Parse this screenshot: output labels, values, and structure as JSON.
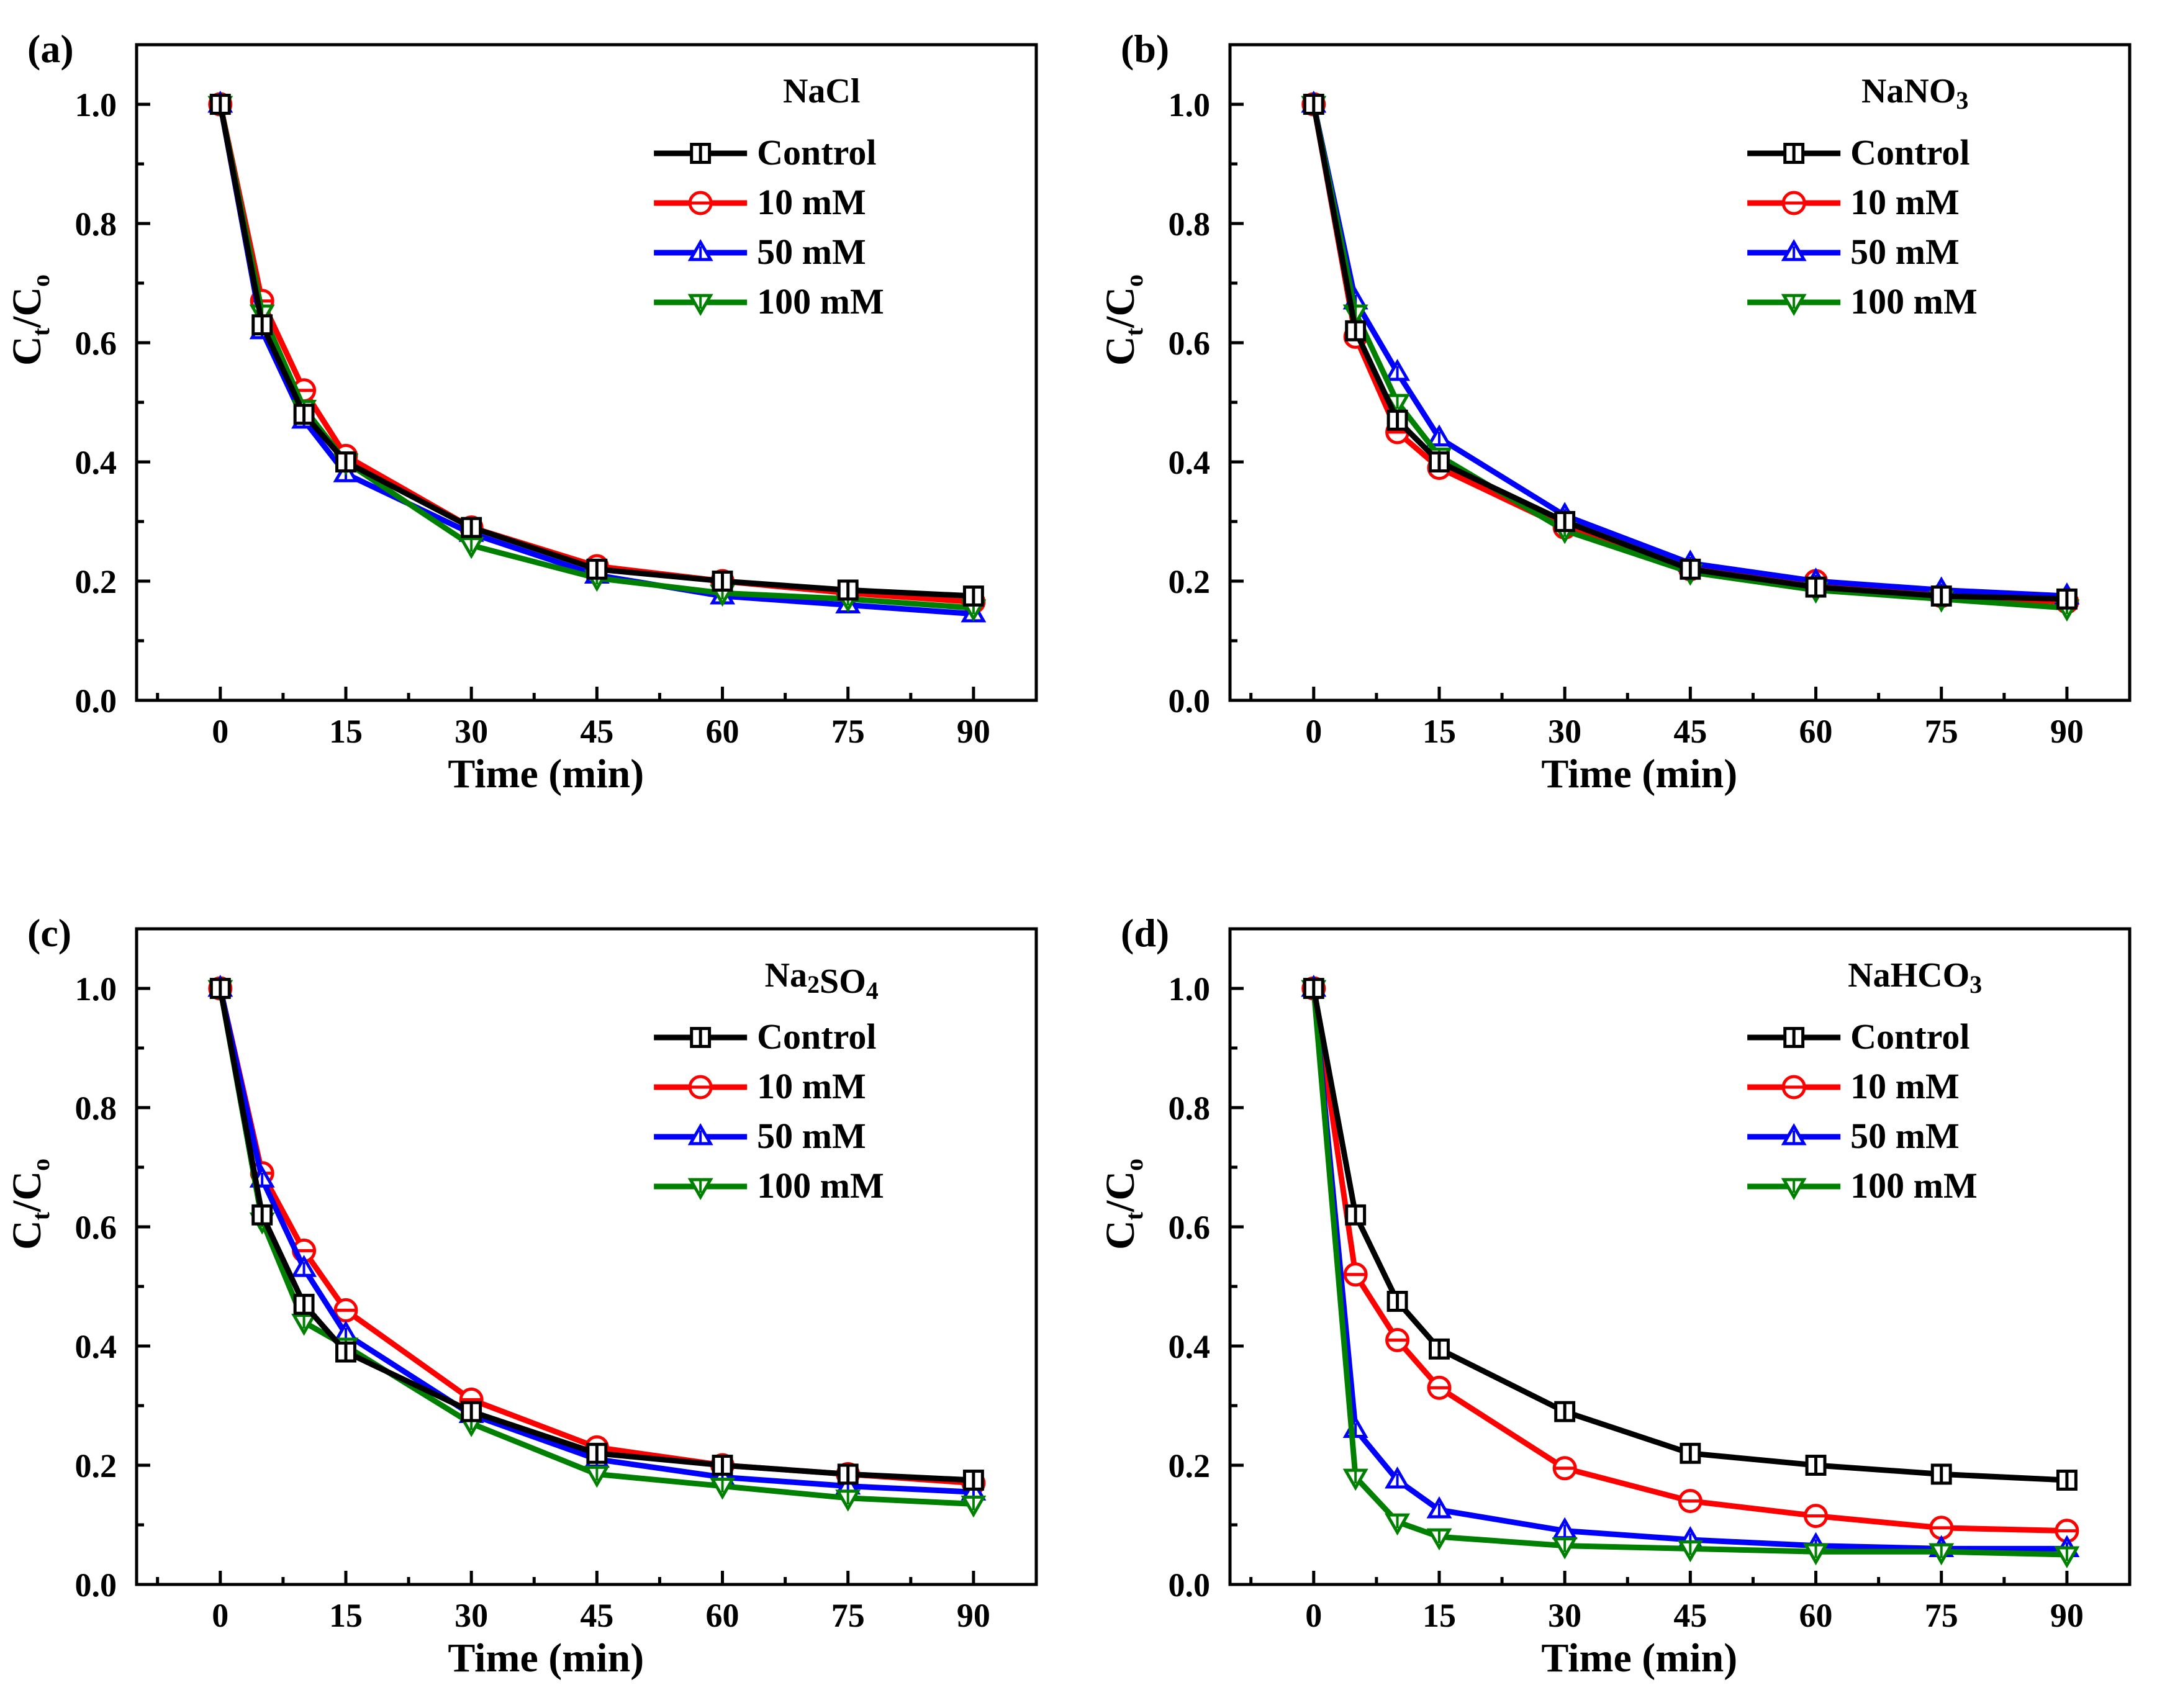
{
  "figure": {
    "background": "#ffffff",
    "series_styles": [
      {
        "key": "control",
        "color": "#000000",
        "marker": "square"
      },
      {
        "key": "10mM",
        "color": "#ff0000",
        "marker": "circle"
      },
      {
        "key": "50mM",
        "color": "#0000ff",
        "marker": "triangle-up"
      },
      {
        "key": "100mM",
        "color": "#008000",
        "marker": "triangle-down"
      }
    ]
  },
  "chart_data": [
    {
      "type": "line",
      "panel_label": "(a)",
      "legend_title": "NaCl",
      "legend_title_parts": [
        {
          "t": "NaCl",
          "sub": false
        }
      ],
      "legend_position": "top-right",
      "x": [
        0,
        5,
        10,
        15,
        30,
        45,
        60,
        75,
        90
      ],
      "xticks": [
        0,
        15,
        30,
        45,
        60,
        75,
        90
      ],
      "xlim": [
        -10,
        97.5
      ],
      "ylim": [
        0,
        1.1
      ],
      "yticks": [
        0.0,
        0.2,
        0.4,
        0.6,
        0.8,
        1.0
      ],
      "xlabel": "Time (min)",
      "ylabel_main": "C",
      "ylabel_sub1": "t",
      "ylabel_mid": "/C",
      "ylabel_sub2": "o",
      "series": [
        {
          "name": "Control",
          "values": [
            1.0,
            0.63,
            0.48,
            0.4,
            0.29,
            0.22,
            0.2,
            0.185,
            0.175
          ]
        },
        {
          "name": "10 mM",
          "values": [
            1.0,
            0.67,
            0.52,
            0.41,
            0.29,
            0.225,
            0.2,
            0.18,
            0.165
          ]
        },
        {
          "name": "50 mM",
          "values": [
            1.0,
            0.62,
            0.47,
            0.38,
            0.28,
            0.21,
            0.175,
            0.16,
            0.145
          ]
        },
        {
          "name": "100 mM",
          "values": [
            1.0,
            0.65,
            0.49,
            0.4,
            0.26,
            0.205,
            0.18,
            0.17,
            0.155
          ]
        }
      ]
    },
    {
      "type": "line",
      "panel_label": "(b)",
      "legend_title": "NaNO3",
      "legend_title_parts": [
        {
          "t": "NaNO",
          "sub": false
        },
        {
          "t": "3",
          "sub": true
        }
      ],
      "legend_position": "top-right",
      "x": [
        0,
        5,
        10,
        15,
        30,
        45,
        60,
        75,
        90
      ],
      "xticks": [
        0,
        15,
        30,
        45,
        60,
        75,
        90
      ],
      "xlim": [
        -10,
        97.5
      ],
      "ylim": [
        0,
        1.1
      ],
      "yticks": [
        0.0,
        0.2,
        0.4,
        0.6,
        0.8,
        1.0
      ],
      "xlabel": "Time (min)",
      "ylabel_main": "C",
      "ylabel_sub1": "t",
      "ylabel_mid": "/C",
      "ylabel_sub2": "o",
      "series": [
        {
          "name": "Control",
          "values": [
            1.0,
            0.62,
            0.47,
            0.4,
            0.3,
            0.22,
            0.19,
            0.175,
            0.17
          ]
        },
        {
          "name": "10 mM",
          "values": [
            1.0,
            0.61,
            0.45,
            0.39,
            0.29,
            0.22,
            0.2,
            0.175,
            0.165
          ]
        },
        {
          "name": "50 mM",
          "values": [
            1.0,
            0.67,
            0.55,
            0.44,
            0.31,
            0.23,
            0.2,
            0.185,
            0.175
          ]
        },
        {
          "name": "100 mM",
          "values": [
            1.0,
            0.65,
            0.5,
            0.41,
            0.285,
            0.215,
            0.185,
            0.17,
            0.155
          ]
        }
      ]
    },
    {
      "type": "line",
      "panel_label": "(c)",
      "legend_title": "Na2SO4",
      "legend_title_parts": [
        {
          "t": "Na",
          "sub": false
        },
        {
          "t": "2",
          "sub": true
        },
        {
          "t": "SO",
          "sub": false
        },
        {
          "t": "4",
          "sub": true
        }
      ],
      "legend_position": "top-right",
      "x": [
        0,
        5,
        10,
        15,
        30,
        45,
        60,
        75,
        90
      ],
      "xticks": [
        0,
        15,
        30,
        45,
        60,
        75,
        90
      ],
      "xlim": [
        -10,
        97.5
      ],
      "ylim": [
        0,
        1.1
      ],
      "yticks": [
        0.0,
        0.2,
        0.4,
        0.6,
        0.8,
        1.0
      ],
      "xlabel": "Time (min)",
      "ylabel_main": "C",
      "ylabel_sub1": "t",
      "ylabel_mid": "/C",
      "ylabel_sub2": "o",
      "series": [
        {
          "name": "Control",
          "values": [
            1.0,
            0.62,
            0.47,
            0.39,
            0.29,
            0.22,
            0.2,
            0.185,
            0.175
          ]
        },
        {
          "name": "10 mM",
          "values": [
            1.0,
            0.69,
            0.56,
            0.46,
            0.31,
            0.23,
            0.2,
            0.185,
            0.17
          ]
        },
        {
          "name": "50 mM",
          "values": [
            1.0,
            0.68,
            0.53,
            0.42,
            0.285,
            0.21,
            0.18,
            0.165,
            0.155
          ]
        },
        {
          "name": "100 mM",
          "values": [
            1.0,
            0.61,
            0.44,
            0.4,
            0.27,
            0.185,
            0.165,
            0.145,
            0.135
          ]
        }
      ]
    },
    {
      "type": "line",
      "panel_label": "(d)",
      "legend_title": "NaHCO3",
      "legend_title_parts": [
        {
          "t": "NaHCO",
          "sub": false
        },
        {
          "t": "3",
          "sub": true
        }
      ],
      "legend_position": "top-right",
      "x": [
        0,
        5,
        10,
        15,
        30,
        45,
        60,
        75,
        90
      ],
      "xticks": [
        0,
        15,
        30,
        45,
        60,
        75,
        90
      ],
      "xlim": [
        -10,
        97.5
      ],
      "ylim": [
        0,
        1.1
      ],
      "yticks": [
        0.0,
        0.2,
        0.4,
        0.6,
        0.8,
        1.0
      ],
      "xlabel": "Time (min)",
      "ylabel_main": "C",
      "ylabel_sub1": "t",
      "ylabel_mid": "/C",
      "ylabel_sub2": "o",
      "series": [
        {
          "name": "Control",
          "values": [
            1.0,
            0.62,
            0.475,
            0.395,
            0.29,
            0.22,
            0.2,
            0.185,
            0.175
          ]
        },
        {
          "name": "10 mM",
          "values": [
            1.0,
            0.52,
            0.41,
            0.33,
            0.195,
            0.14,
            0.115,
            0.095,
            0.09
          ]
        },
        {
          "name": "50 mM",
          "values": [
            1.0,
            0.26,
            0.175,
            0.125,
            0.09,
            0.075,
            0.065,
            0.06,
            0.06
          ]
        },
        {
          "name": "100 mM",
          "values": [
            1.0,
            0.18,
            0.105,
            0.08,
            0.065,
            0.06,
            0.055,
            0.055,
            0.05
          ]
        }
      ]
    }
  ]
}
